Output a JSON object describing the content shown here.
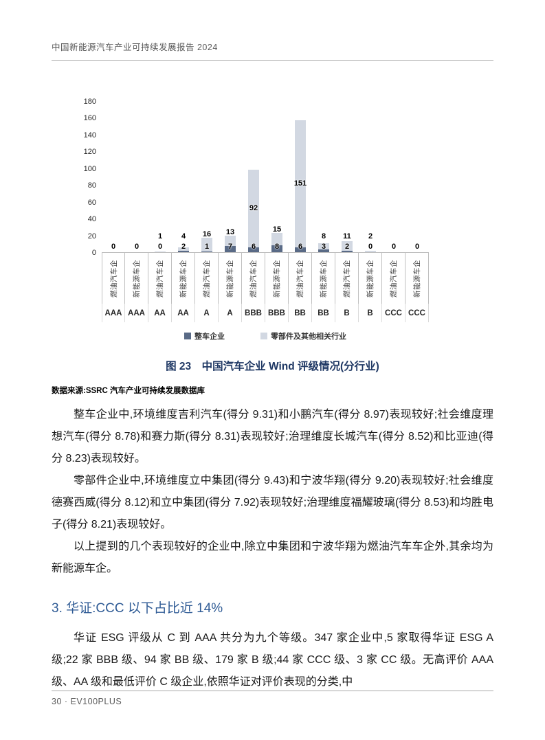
{
  "page": {
    "header": "中国新能源汽车产业可持续发展报告 2024",
    "footer": "30 · EV100PLUS"
  },
  "chart_data": {
    "type": "bar",
    "stacked": true,
    "title": "图 23　中国汽车企业 Wind 评级情况(分行业)",
    "ylabel": "",
    "xlabel": "",
    "ylim": [
      0,
      180
    ],
    "yticks": [
      0,
      20,
      40,
      60,
      80,
      100,
      120,
      140,
      160,
      180
    ],
    "grid": false,
    "legend_position": "bottom",
    "categories": [
      {
        "rating": "AAA",
        "group": "燃油汽车企"
      },
      {
        "rating": "AAA",
        "group": "新能源车企"
      },
      {
        "rating": "AA",
        "group": "燃油汽车企"
      },
      {
        "rating": "AA",
        "group": "新能源车企"
      },
      {
        "rating": "A",
        "group": "燃油汽车企"
      },
      {
        "rating": "A",
        "group": "新能源车企"
      },
      {
        "rating": "BBB",
        "group": "燃油汽车企"
      },
      {
        "rating": "BBB",
        "group": "新能源车企"
      },
      {
        "rating": "BB",
        "group": "燃油汽车企"
      },
      {
        "rating": "BB",
        "group": "新能源车企"
      },
      {
        "rating": "B",
        "group": "燃油汽车企"
      },
      {
        "rating": "B",
        "group": "新能源车企"
      },
      {
        "rating": "CCC",
        "group": "燃油汽车企"
      },
      {
        "rating": "CCC",
        "group": "新能源车企"
      }
    ],
    "series": [
      {
        "name": "整车企业",
        "color": "#596a86",
        "values": [
          0,
          0,
          0,
          2,
          1,
          7,
          6,
          8,
          6,
          3,
          2,
          0,
          0,
          0
        ]
      },
      {
        "name": "零部件及其他相关行业",
        "color": "#d2d8e2",
        "values": [
          0,
          0,
          1,
          4,
          16,
          13,
          92,
          15,
          151,
          8,
          11,
          2,
          0,
          0
        ]
      }
    ]
  },
  "figure": {
    "caption": "图 23　中国汽车企业 Wind 评级情况(分行业)",
    "source": "数据来源:SSRC 汽车产业可持续发展数据库"
  },
  "body": {
    "p1": "整车企业中,环境维度吉利汽车(得分 9.31)和小鹏汽车(得分 8.97)表现较好;社会维度理想汽车(得分 8.78)和赛力斯(得分 8.31)表现较好;治理维度长城汽车(得分 8.52)和比亚迪(得分 8.23)表现较好。",
    "p2": "零部件企业中,环境维度立中集团(得分 9.43)和宁波华翔(得分 9.20)表现较好;社会维度德赛西威(得分 8.12)和立中集团(得分 7.92)表现较好;治理维度福耀玻璃(得分 8.53)和均胜电子(得分 8.21)表现较好。",
    "p3": "以上提到的几个表现较好的企业中,除立中集团和宁波华翔为燃油汽车车企外,其余均为新能源车企。",
    "heading": "3. 华证:CCC 以下占比近 14%",
    "p4": "华证 ESG 评级从 C 到 AAA 共分为九个等级。347 家企业中,5 家取得华证 ESG A 级;22 家 BBB 级、94 家 BB 级、179 家 B 级;44 家 CCC 级、3 家 CC 级。无高评价 AAA 级、AA 级和最低评价 C 级企业,依照华证对评价表现的分类,中"
  }
}
